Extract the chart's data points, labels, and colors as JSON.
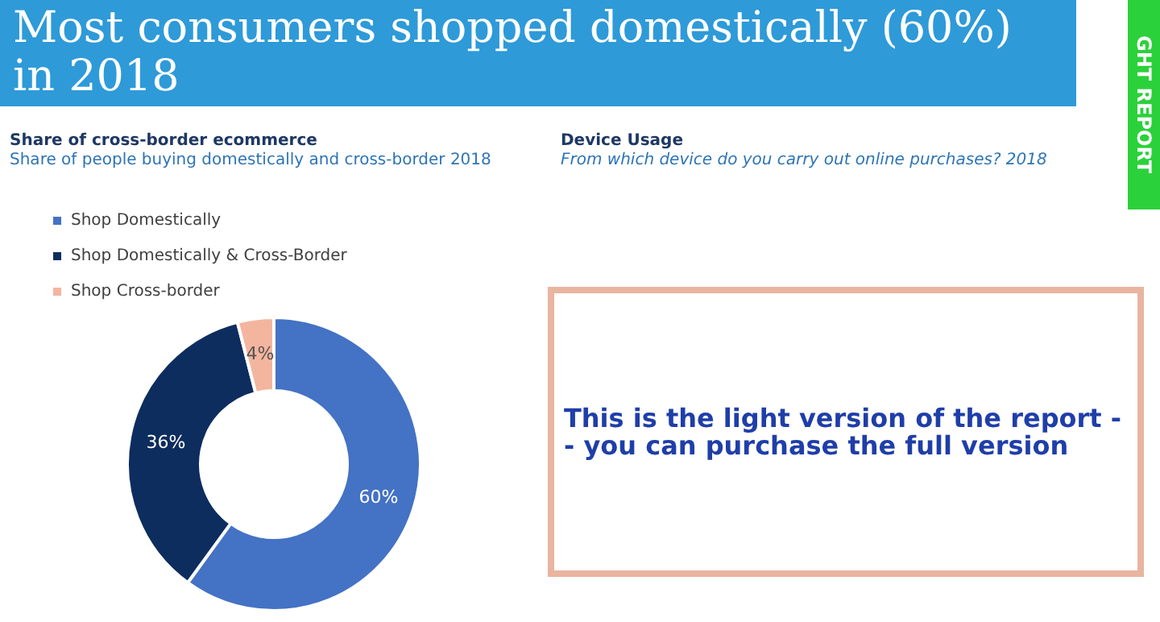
{
  "chart_data": {
    "type": "donut",
    "title": "Most consumers shopped domestically (60%) in 2018",
    "subtitle": "Share of cross-border ecommerce",
    "categories": [
      "Shop Domestically",
      "Shop Domestically & Cross-Border",
      "Shop Cross-border"
    ],
    "values": [
      60,
      36,
      4
    ],
    "colors": [
      "#4472c4",
      "#0d2d5e",
      "#f4b59f"
    ],
    "value_labels": [
      "60%",
      "36%",
      "4%"
    ],
    "legend": "top left",
    "annotations": [
      "Share of people buying domestically and cross-border 2018",
      "Device Usage",
      "From which device do you carry out online purchases? 2018",
      "This is the light version of the report -- you can purchase the full version",
      "GHT REPORT"
    ]
  }
}
